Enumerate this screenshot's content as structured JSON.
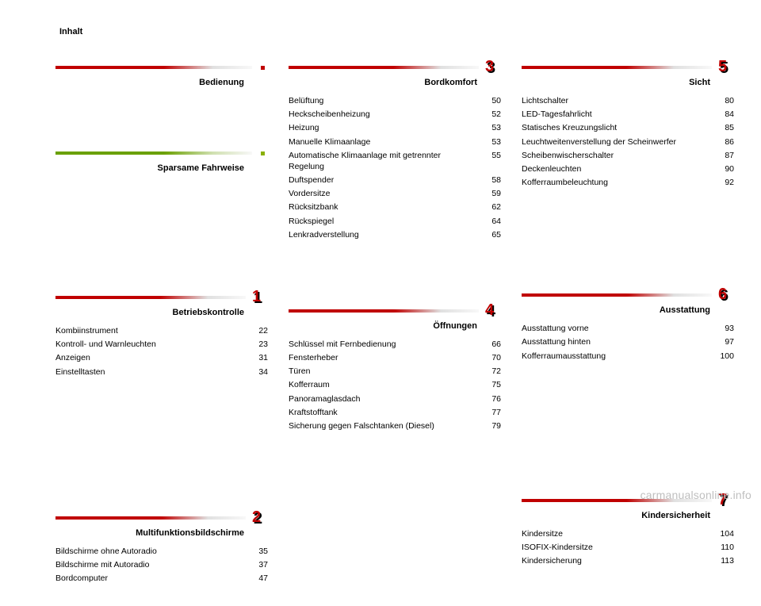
{
  "page_title": "Inhalt",
  "footer": "carmanualsonline.info",
  "columns": [
    [
      {
        "title": "Bedienung",
        "bar": "red",
        "marker": "square-red",
        "spacer_after": 34,
        "entries": []
      },
      {
        "title": "Sparsame Fahrweise",
        "bar": "green",
        "marker": "square-green",
        "spacer_after": 108,
        "entries": []
      },
      {
        "title": "Betriebskontrolle",
        "bar": "red",
        "marker": "chapter",
        "chapter": "1",
        "spacer_after": 138,
        "entries": [
          {
            "label": "Kombiinstrument",
            "page": "22"
          },
          {
            "label": "Kontroll- und Warnleuchten",
            "page": "23"
          },
          {
            "label": "Anzeigen",
            "page": "31"
          },
          {
            "label": "Einstelltasten",
            "page": "34"
          }
        ]
      },
      {
        "title": "Multifunktionsbildschirme",
        "bar": "red",
        "marker": "chapter",
        "chapter": "2",
        "spacer_after": 0,
        "entries": [
          {
            "label": "Bildschirme ohne Autoradio",
            "page": "35"
          },
          {
            "label": "Bildschirme mit Autoradio",
            "page": "37"
          },
          {
            "label": "Bordcomputer",
            "page": "47"
          }
        ]
      }
    ],
    [
      {
        "title": "Bordkomfort",
        "bar": "red",
        "marker": "chapter",
        "chapter": "3",
        "spacer_after": 50,
        "entries": [
          {
            "label": "Belüftung",
            "page": "50"
          },
          {
            "label": "Heckscheibenheizung",
            "page": "52"
          },
          {
            "label": "Heizung",
            "page": "53"
          },
          {
            "label": "Manuelle Klimaanlage",
            "page": "53"
          },
          {
            "label": "Automatische Klimaanlage mit getrennter Regelung",
            "page": "55"
          },
          {
            "label": "Duftspender",
            "page": "58"
          },
          {
            "label": "Vordersitze",
            "page": "59"
          },
          {
            "label": "Rücksitzbank",
            "page": "62"
          },
          {
            "label": "Rückspiegel",
            "page": "64"
          },
          {
            "label": "Lenkradverstellung",
            "page": "65"
          }
        ]
      },
      {
        "title": "Öffnungen",
        "bar": "red",
        "marker": "chapter",
        "chapter": "4",
        "spacer_after": 0,
        "entries": [
          {
            "label": "Schlüssel mit Fernbedienung",
            "page": "66"
          },
          {
            "label": "Fensterheber",
            "page": "70"
          },
          {
            "label": "Türen",
            "page": "72"
          },
          {
            "label": "Kofferraum",
            "page": "75"
          },
          {
            "label": "Panoramaglasdach",
            "page": "76"
          },
          {
            "label": "Kraftstofftank",
            "page": "77"
          },
          {
            "label": "Sicherung gegen Falschtanken (Diesel)",
            "page": "79"
          }
        ]
      }
    ],
    [
      {
        "title": "Sicht",
        "bar": "red",
        "marker": "chapter",
        "chapter": "5",
        "spacer_after": 96,
        "entries": [
          {
            "label": "Lichtschalter",
            "page": "80"
          },
          {
            "label": "LED-Tagesfahrlicht",
            "page": "84"
          },
          {
            "label": "Statisches Kreuzungslicht",
            "page": "85"
          },
          {
            "label": "Leuchtweitenverstellung der Scheinwerfer",
            "page": "86"
          },
          {
            "label": "Scheibenwischerschalter",
            "page": "87"
          },
          {
            "label": "Deckenleuchten",
            "page": "90"
          },
          {
            "label": "Kofferraumbeleuchtung",
            "page": "92"
          }
        ]
      },
      {
        "title": "Ausstattung",
        "bar": "red",
        "marker": "chapter",
        "chapter": "6",
        "spacer_after": 136,
        "entries": [
          {
            "label": "Ausstattung vorne",
            "page": "93"
          },
          {
            "label": "Ausstattung hinten",
            "page": "97"
          },
          {
            "label": "Kofferraumausstattung",
            "page": "100"
          }
        ]
      },
      {
        "title": "Kindersicherheit",
        "bar": "red",
        "marker": "chapter",
        "chapter": "7",
        "spacer_after": 0,
        "entries": [
          {
            "label": "Kindersitze",
            "page": "104"
          },
          {
            "label": "ISOFIX-Kindersitze",
            "page": "110"
          },
          {
            "label": "Kindersicherung",
            "page": "113"
          }
        ]
      }
    ]
  ]
}
